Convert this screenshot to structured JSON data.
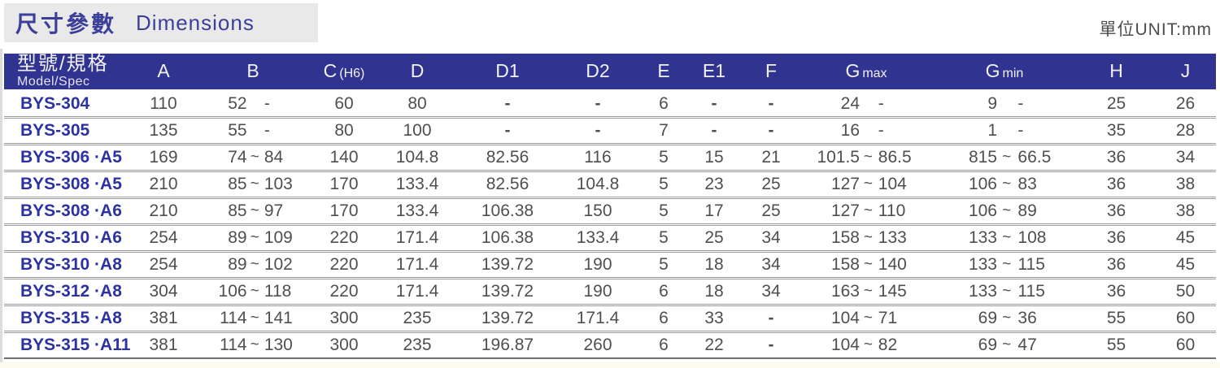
{
  "title": {
    "zh": "尺寸參數",
    "en": "Dimensions"
  },
  "unit_label": "單位UNIT:mm",
  "colors": {
    "header_bg": "#30338f",
    "model_text": "#2c33a1",
    "title_text": "#3c3f99",
    "data_text": "#4f4f4f",
    "title_box_bg": "#e9e9e9",
    "row_separator": "#9b9b9b"
  },
  "table": {
    "columns": [
      {
        "key": "model",
        "zh": "型號/規格",
        "en": "Model/Spec"
      },
      {
        "key": "A",
        "label": "A"
      },
      {
        "key": "B",
        "label": "B"
      },
      {
        "key": "C",
        "label": "C",
        "suffix": "(H6)"
      },
      {
        "key": "D",
        "label": "D"
      },
      {
        "key": "D1",
        "label": "D1"
      },
      {
        "key": "D2",
        "label": "D2"
      },
      {
        "key": "E",
        "label": "E"
      },
      {
        "key": "E1",
        "label": "E1"
      },
      {
        "key": "F",
        "label": "F"
      },
      {
        "key": "Gmax",
        "label": "G",
        "suffix": "max"
      },
      {
        "key": "Gmin",
        "label": "G",
        "suffix": "min"
      },
      {
        "key": "H",
        "label": "H"
      },
      {
        "key": "J",
        "label": "J"
      }
    ],
    "rows": [
      {
        "model": "BYS-304",
        "A": "110",
        "B": [
          "52",
          "",
          "-"
        ],
        "C": "60",
        "D": "80",
        "D1": "-",
        "D2": "-",
        "E": "6",
        "E1": "-",
        "F": "-",
        "Gmax": [
          "24",
          "",
          "-"
        ],
        "Gmin": [
          "9",
          "",
          "-"
        ],
        "H": "25",
        "J": "26"
      },
      {
        "model": "BYS-305",
        "A": "135",
        "B": [
          "55",
          "",
          "-"
        ],
        "C": "80",
        "D": "100",
        "D1": "-",
        "D2": "-",
        "E": "7",
        "E1": "-",
        "F": "-",
        "Gmax": [
          "16",
          "",
          "-"
        ],
        "Gmin": [
          "1",
          "",
          "-"
        ],
        "H": "35",
        "J": "28"
      },
      {
        "model": "BYS-306 ·A5",
        "A": "169",
        "B": [
          "74",
          "~",
          "84"
        ],
        "C": "140",
        "D": "104.8",
        "D1": "82.56",
        "D2": "116",
        "E": "5",
        "E1": "15",
        "F": "21",
        "Gmax": [
          "101.5",
          "~",
          "86.5"
        ],
        "Gmin": [
          "815",
          "~",
          "66.5"
        ],
        "H": "36",
        "J": "34"
      },
      {
        "model": "BYS-308 ·A5",
        "A": "210",
        "B": [
          "85",
          "~",
          "103"
        ],
        "C": "170",
        "D": "133.4",
        "D1": "82.56",
        "D2": "104.8",
        "E": "5",
        "E1": "23",
        "F": "25",
        "Gmax": [
          "127",
          "~",
          "104"
        ],
        "Gmin": [
          "106",
          "~",
          "83"
        ],
        "H": "36",
        "J": "38"
      },
      {
        "model": "BYS-308 ·A6",
        "A": "210",
        "B": [
          "85",
          "~",
          "97"
        ],
        "C": "170",
        "D": "133.4",
        "D1": "106.38",
        "D2": "150",
        "E": "5",
        "E1": "17",
        "F": "25",
        "Gmax": [
          "127",
          "~",
          "110"
        ],
        "Gmin": [
          "106",
          "~",
          "89"
        ],
        "H": "36",
        "J": "38"
      },
      {
        "model": "BYS-310 ·A6",
        "A": "254",
        "B": [
          "89",
          "~",
          "109"
        ],
        "C": "220",
        "D": "171.4",
        "D1": "106.38",
        "D2": "133.4",
        "E": "5",
        "E1": "25",
        "F": "34",
        "Gmax": [
          "158",
          "~",
          "133"
        ],
        "Gmin": [
          "133",
          "~",
          "108"
        ],
        "H": "36",
        "J": "45"
      },
      {
        "model": "BYS-310 ·A8",
        "A": "254",
        "B": [
          "89",
          "~",
          "102"
        ],
        "C": "220",
        "D": "171.4",
        "D1": "139.72",
        "D2": "190",
        "E": "5",
        "E1": "18",
        "F": "34",
        "Gmax": [
          "158",
          "~",
          "140"
        ],
        "Gmin": [
          "133",
          "~",
          "115"
        ],
        "H": "36",
        "J": "45"
      },
      {
        "model": "BYS-312 ·A8",
        "A": "304",
        "B": [
          "106",
          "~",
          "118"
        ],
        "C": "220",
        "D": "171.4",
        "D1": "139.72",
        "D2": "190",
        "E": "6",
        "E1": "18",
        "F": "34",
        "Gmax": [
          "163",
          "~",
          "145"
        ],
        "Gmin": [
          "133",
          "~",
          "115"
        ],
        "H": "36",
        "J": "50"
      },
      {
        "model": "BYS-315 ·A8",
        "A": "381",
        "B": [
          "114",
          "~",
          "141"
        ],
        "C": "300",
        "D": "235",
        "D1": "139.72",
        "D2": "171.4",
        "E": "6",
        "E1": "33",
        "F": "-",
        "Gmax": [
          "104",
          "~",
          "71"
        ],
        "Gmin": [
          "69",
          "~",
          "36"
        ],
        "H": "55",
        "J": "60"
      },
      {
        "model": "BYS-315 ·A11",
        "A": "381",
        "B": [
          "114",
          "~",
          "130"
        ],
        "C": "300",
        "D": "235",
        "D1": "196.87",
        "D2": "260",
        "E": "6",
        "E1": "22",
        "F": "-",
        "Gmax": [
          "104",
          "~",
          "82"
        ],
        "Gmin": [
          "69",
          "~",
          "47"
        ],
        "H": "55",
        "J": "60"
      }
    ]
  }
}
